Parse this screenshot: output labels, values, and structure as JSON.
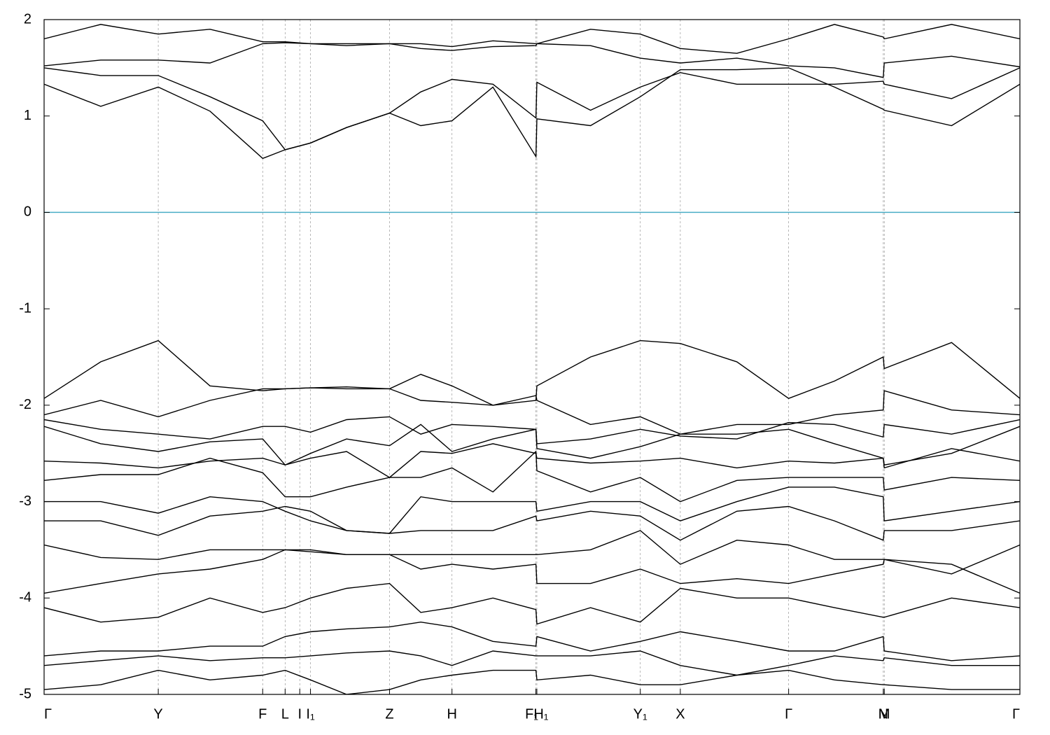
{
  "chart_data": {
    "type": "line",
    "xlim": [
      0,
      10
    ],
    "ylim": [
      -5,
      2
    ],
    "yticks": [
      2,
      1,
      0,
      -1,
      -2,
      -3,
      -4,
      -5
    ],
    "xticks": [
      {
        "value": 0,
        "label": "Γ"
      },
      {
        "value": 1.17,
        "label": "Y"
      },
      {
        "value": 2.24,
        "label": "F"
      },
      {
        "value": 2.47,
        "label": "L"
      },
      {
        "value": 2.62,
        "label": "I"
      },
      {
        "value": 2.73,
        "label": "I₁"
      },
      {
        "value": 3.54,
        "label": "Z"
      },
      {
        "value": 4.18,
        "label": "H"
      },
      {
        "value": 5.04,
        "label": "F₁"
      },
      {
        "value": 5.05,
        "label": "H₁"
      },
      {
        "value": 6.11,
        "label": "Y₁"
      },
      {
        "value": 6.52,
        "label": "X"
      },
      {
        "value": 7.63,
        "label": "Γ"
      },
      {
        "value": 8.6,
        "label": "N"
      },
      {
        "value": 8.61,
        "label": "M"
      },
      {
        "value": 10,
        "label": "Γ"
      }
    ],
    "x_grid": true,
    "color": "#000000",
    "reference_line": {
      "value": 0,
      "color": "#4aaec6"
    },
    "x": [
      0,
      0.58,
      1.17,
      1.7,
      2.24,
      2.47,
      2.73,
      3.1,
      3.54,
      3.86,
      4.18,
      4.6,
      5.04,
      5.05,
      5.6,
      6.11,
      6.52,
      7.1,
      7.63,
      8.1,
      8.6,
      8.61,
      9.3,
      10
    ],
    "series": [
      {
        "values": [
          1.33,
          1.1,
          1.3,
          1.05,
          0.56,
          0.65,
          0.72,
          0.88,
          1.03,
          0.9,
          0.95,
          1.3,
          0.58,
          0.97,
          0.9,
          1.2,
          1.48,
          1.48,
          1.5,
          1.3,
          1.07,
          1.06,
          0.9,
          1.33
        ]
      },
      {
        "values": [
          1.5,
          1.42,
          1.42,
          1.2,
          0.95,
          0.65,
          0.72,
          0.88,
          1.03,
          1.25,
          1.38,
          1.33,
          0.98,
          1.35,
          1.06,
          1.3,
          1.45,
          1.33,
          1.33,
          1.33,
          1.36,
          1.33,
          1.18,
          1.5
        ]
      },
      {
        "values": [
          1.52,
          1.58,
          1.58,
          1.55,
          1.75,
          1.76,
          1.75,
          1.73,
          1.75,
          1.7,
          1.68,
          1.72,
          1.73,
          1.75,
          1.73,
          1.6,
          1.55,
          1.6,
          1.52,
          1.5,
          1.4,
          1.55,
          1.62,
          1.51
        ]
      },
      {
        "values": [
          1.8,
          1.95,
          1.85,
          1.9,
          1.77,
          1.77,
          1.75,
          1.75,
          1.75,
          1.75,
          1.72,
          1.78,
          1.75,
          1.75,
          1.9,
          1.85,
          1.7,
          1.65,
          1.8,
          1.95,
          1.82,
          1.8,
          1.95,
          1.8
        ]
      },
      {
        "values": [
          -1.93,
          -1.55,
          -1.33,
          -1.8,
          -1.85,
          -1.83,
          -1.82,
          -1.81,
          -1.83,
          -1.68,
          -1.8,
          -2.0,
          -1.95,
          -1.8,
          -1.5,
          -1.33,
          -1.36,
          -1.55,
          -1.93,
          -1.75,
          -1.5,
          -1.62,
          -1.35,
          -1.93
        ]
      },
      {
        "values": [
          -2.1,
          -1.95,
          -2.12,
          -1.95,
          -1.83,
          -1.83,
          -1.82,
          -1.83,
          -1.83,
          -1.95,
          -1.97,
          -2.0,
          -1.9,
          -1.95,
          -2.2,
          -2.12,
          -2.3,
          -2.2,
          -2.2,
          -2.1,
          -2.05,
          -1.85,
          -2.05,
          -2.1
        ]
      },
      {
        "values": [
          -2.15,
          -2.25,
          -2.3,
          -2.35,
          -2.22,
          -2.22,
          -2.28,
          -2.15,
          -2.12,
          -2.3,
          -2.2,
          -2.22,
          -2.25,
          -2.4,
          -2.35,
          -2.25,
          -2.32,
          -2.35,
          -2.18,
          -2.2,
          -2.33,
          -2.2,
          -2.3,
          -2.15
        ]
      },
      {
        "values": [
          -2.22,
          -2.4,
          -2.48,
          -2.38,
          -2.35,
          -2.62,
          -2.5,
          -2.35,
          -2.42,
          -2.2,
          -2.48,
          -2.35,
          -2.25,
          -2.45,
          -2.55,
          -2.43,
          -2.3,
          -2.3,
          -2.25,
          -2.4,
          -2.55,
          -2.62,
          -2.5,
          -2.22
        ]
      },
      {
        "values": [
          -2.58,
          -2.6,
          -2.65,
          -2.58,
          -2.55,
          -2.62,
          -2.55,
          -2.48,
          -2.75,
          -2.48,
          -2.5,
          -2.4,
          -2.5,
          -2.55,
          -2.6,
          -2.58,
          -2.55,
          -2.65,
          -2.58,
          -2.6,
          -2.55,
          -2.65,
          -2.45,
          -2.58
        ]
      },
      {
        "values": [
          -2.78,
          -2.72,
          -2.72,
          -2.55,
          -2.7,
          -2.95,
          -2.95,
          -2.85,
          -2.75,
          -2.75,
          -2.65,
          -2.9,
          -2.48,
          -2.68,
          -2.9,
          -2.75,
          -3.0,
          -2.78,
          -2.75,
          -2.75,
          -2.75,
          -2.88,
          -2.75,
          -2.78
        ]
      },
      {
        "values": [
          -3.0,
          -3.0,
          -3.12,
          -2.95,
          -3.0,
          -3.1,
          -3.2,
          -3.3,
          -3.33,
          -2.95,
          -3.0,
          -3.0,
          -3.0,
          -3.1,
          -3.0,
          -3.0,
          -3.2,
          -3.0,
          -2.85,
          -2.85,
          -2.95,
          -3.2,
          -3.1,
          -3.0
        ]
      },
      {
        "values": [
          -3.2,
          -3.2,
          -3.35,
          -3.15,
          -3.1,
          -3.05,
          -3.1,
          -3.3,
          -3.33,
          -3.3,
          -3.3,
          -3.3,
          -3.15,
          -3.2,
          -3.1,
          -3.15,
          -3.4,
          -3.1,
          -3.05,
          -3.2,
          -3.4,
          -3.3,
          -3.3,
          -3.2
        ]
      },
      {
        "values": [
          -3.45,
          -3.58,
          -3.6,
          -3.5,
          -3.5,
          -3.5,
          -3.52,
          -3.55,
          -3.55,
          -3.55,
          -3.55,
          -3.55,
          -3.55,
          -3.55,
          -3.5,
          -3.3,
          -3.65,
          -3.4,
          -3.45,
          -3.6,
          -3.6,
          -3.6,
          -3.75,
          -3.45
        ]
      },
      {
        "values": [
          -3.95,
          -3.85,
          -3.75,
          -3.7,
          -3.6,
          -3.5,
          -3.5,
          -3.55,
          -3.55,
          -3.7,
          -3.65,
          -3.7,
          -3.65,
          -3.85,
          -3.85,
          -3.7,
          -3.85,
          -3.8,
          -3.85,
          -3.75,
          -3.65,
          -3.6,
          -3.65,
          -3.95
        ]
      },
      {
        "values": [
          -4.1,
          -4.25,
          -4.2,
          -4.0,
          -4.15,
          -4.1,
          -4.0,
          -3.9,
          -3.85,
          -4.15,
          -4.1,
          -4.0,
          -4.12,
          -4.27,
          -4.1,
          -4.25,
          -3.9,
          -4.0,
          -4.0,
          -4.1,
          -4.2,
          -4.2,
          -4.0,
          -4.1
        ]
      },
      {
        "values": [
          -4.6,
          -4.55,
          -4.55,
          -4.5,
          -4.5,
          -4.4,
          -4.35,
          -4.32,
          -4.3,
          -4.25,
          -4.3,
          -4.45,
          -4.5,
          -4.4,
          -4.55,
          -4.45,
          -4.35,
          -4.45,
          -4.55,
          -4.55,
          -4.4,
          -4.55,
          -4.65,
          -4.6
        ]
      },
      {
        "values": [
          -4.7,
          -4.65,
          -4.6,
          -4.65,
          -4.62,
          -4.62,
          -4.6,
          -4.57,
          -4.55,
          -4.6,
          -4.7,
          -4.55,
          -4.6,
          -4.6,
          -4.6,
          -4.55,
          -4.7,
          -4.8,
          -4.7,
          -4.6,
          -4.65,
          -4.62,
          -4.7,
          -4.7
        ]
      },
      {
        "values": [
          -4.95,
          -4.9,
          -4.75,
          -4.85,
          -4.8,
          -4.75,
          -4.85,
          -5.0,
          -4.95,
          -4.85,
          -4.8,
          -4.75,
          -4.75,
          -4.85,
          -4.8,
          -4.9,
          -4.9,
          -4.8,
          -4.75,
          -4.85,
          -4.9,
          -4.9,
          -4.95,
          -4.95
        ]
      }
    ]
  }
}
